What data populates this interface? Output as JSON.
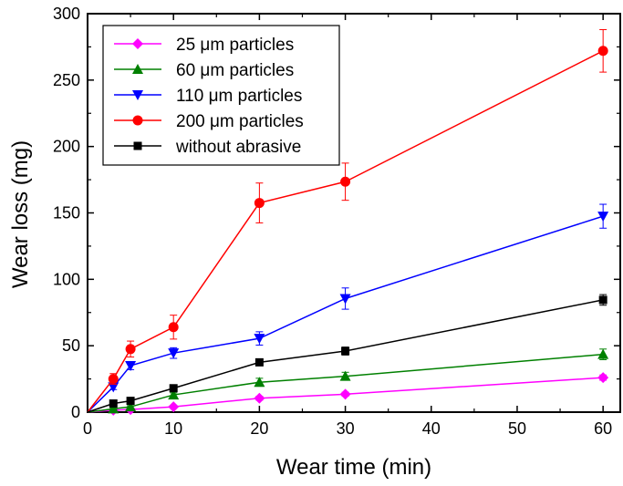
{
  "chart_data": {
    "type": "line",
    "title": "",
    "xlabel": "Wear time (min)",
    "ylabel": "Wear loss (mg)",
    "xlim": [
      0,
      62
    ],
    "ylim": [
      0,
      300
    ],
    "xticks": [
      0,
      10,
      20,
      30,
      40,
      50,
      60
    ],
    "yticks": [
      0,
      50,
      100,
      150,
      200,
      250,
      300
    ],
    "grid": false,
    "legend_position": "top-left",
    "series": [
      {
        "name": "25 μm particles",
        "color": "#ff00ff",
        "marker": "diamond",
        "points": [
          [
            0,
            0
          ],
          [
            3,
            1.5
          ],
          [
            5,
            2
          ],
          [
            10,
            4
          ],
          [
            20,
            10.5
          ],
          [
            30,
            13.5
          ],
          [
            60,
            26
          ]
        ],
        "errors": [
          0,
          0.5,
          0.5,
          0.8,
          1.5,
          1.5,
          2
        ]
      },
      {
        "name": "60 μm particles",
        "color": "#008000",
        "marker": "triangle-up",
        "points": [
          [
            0,
            0
          ],
          [
            3,
            2.5
          ],
          [
            5,
            4
          ],
          [
            10,
            13
          ],
          [
            20,
            22.5
          ],
          [
            30,
            27
          ],
          [
            60,
            43.5
          ]
        ],
        "errors": [
          0,
          0.5,
          0.8,
          1.5,
          3,
          3,
          4
        ]
      },
      {
        "name": "110 μm particles",
        "color": "#0000ff",
        "marker": "triangle-down",
        "points": [
          [
            0,
            0
          ],
          [
            3,
            19
          ],
          [
            5,
            35
          ],
          [
            10,
            44.5
          ],
          [
            20,
            55.5
          ],
          [
            30,
            85.5
          ],
          [
            60,
            147.5
          ]
        ],
        "errors": [
          0,
          2,
          3,
          4,
          5,
          8,
          9
        ]
      },
      {
        "name": "200 μm particles",
        "color": "#ff0000",
        "marker": "circle",
        "points": [
          [
            0,
            0
          ],
          [
            3,
            25
          ],
          [
            5,
            47.5
          ],
          [
            10,
            64
          ],
          [
            20,
            157.5
          ],
          [
            30,
            173.5
          ],
          [
            60,
            272
          ]
        ],
        "errors": [
          0,
          4,
          6,
          9,
          15,
          14,
          16
        ]
      },
      {
        "name": "without abrasive",
        "color": "#000000",
        "marker": "square",
        "points": [
          [
            0,
            0
          ],
          [
            3,
            6.5
          ],
          [
            5,
            8.5
          ],
          [
            10,
            18
          ],
          [
            20,
            37.5
          ],
          [
            30,
            46
          ],
          [
            60,
            84.5
          ]
        ],
        "errors": [
          0,
          1,
          1,
          2,
          2,
          3,
          4
        ]
      }
    ]
  }
}
